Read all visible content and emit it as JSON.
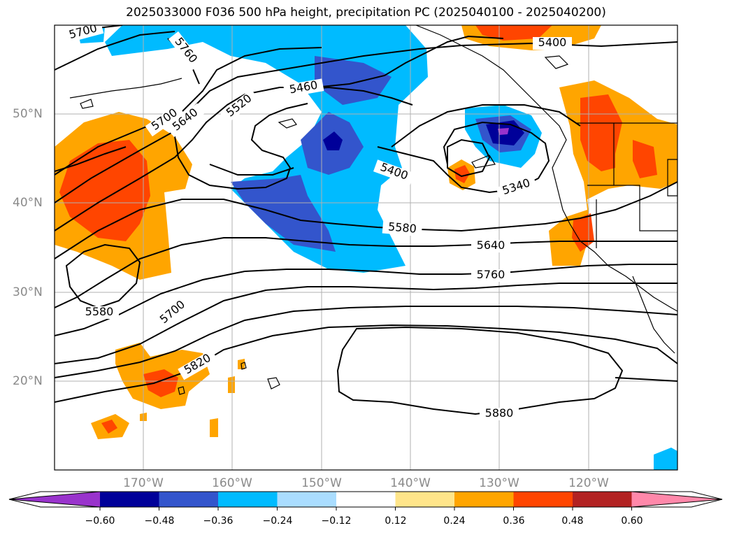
{
  "title": "2025033000 F036 500 hPa height, precipitation PC (2025040100 - 2025040200)",
  "map": {
    "lat_labels": [
      "50°N",
      "40°N",
      "30°N",
      "20°N"
    ],
    "lon_labels": [
      "170°W",
      "160°W",
      "150°W",
      "140°W",
      "130°W",
      "120°W"
    ],
    "contour_labels": [
      "5700",
      "5760",
      "5700",
      "5640",
      "5520",
      "5460",
      "5400",
      "5400",
      "5340",
      "5580",
      "5640",
      "5760",
      "5580",
      "5700",
      "5820",
      "5880"
    ]
  },
  "colorbar": {
    "ticks": [
      "−0.60",
      "−0.48",
      "−0.36",
      "−0.24",
      "−0.12",
      "0.12",
      "0.24",
      "0.36",
      "0.48",
      "0.60"
    ],
    "colors": [
      "#9933cc",
      "#000099",
      "#3355cc",
      "#00bbff",
      "#aaddff",
      "#ffffff",
      "#ffe58a",
      "#ffa500",
      "#ff4500",
      "#b22222",
      "#ff88aa"
    ]
  }
}
